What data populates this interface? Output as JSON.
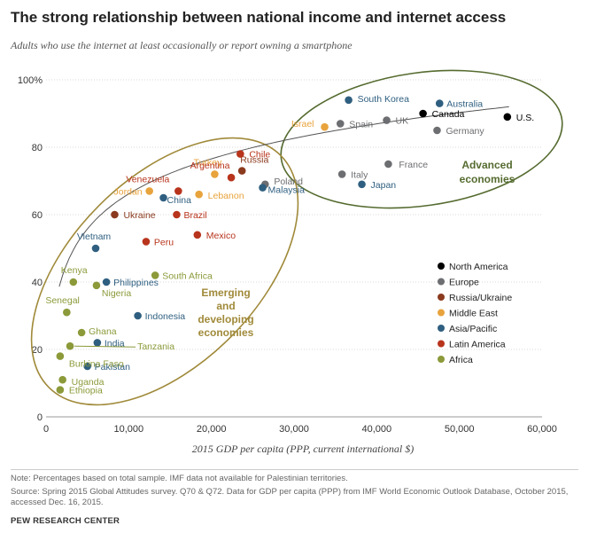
{
  "title": "The strong relationship between national income and internet access",
  "subtitle": "Adults who use the internet at least occasionally or report owning a smartphone",
  "note": "Note: Percentages based on total sample. IMF data not available for Palestinian territories.",
  "source": "Source: Spring 2015 Global Attitudes survey. Q70 & Q72. Data for GDP per capita (PPP) from IMF World Economic Outlook Database, October 2015, accessed Dec. 16, 2015.",
  "credit": "PEW RESEARCH CENTER",
  "colors": {
    "North America": "#000000",
    "Europe": "#6d6e71",
    "Russia/Ukraine": "#8b3a1e",
    "Middle East": "#e8a33c",
    "Asia/Pacific": "#2f5f80",
    "Latin America": "#b8341c",
    "Africa": "#8c9a3a",
    "ellipse": "#a08a3a",
    "ellipse_adv": "#556b2f",
    "trend": "#555555"
  },
  "chart_data": {
    "type": "scatter",
    "xlabel": "2015 GDP per capita (PPP, current international $)",
    "ylabel": "",
    "xlim": [
      0,
      60000
    ],
    "ylim": [
      0,
      100
    ],
    "xticks": [
      "0",
      "10,000",
      "20,000",
      "30,000",
      "40,000",
      "50,000",
      "60,000"
    ],
    "yticks": [
      "0",
      "20",
      "40",
      "60",
      "80",
      "100%"
    ],
    "grid": true,
    "legend": [
      "North America",
      "Europe",
      "Russia/Ukraine",
      "Middle East",
      "Asia/Pacific",
      "Latin America",
      "Africa"
    ],
    "legend_position": "right",
    "annotations": [
      {
        "text": [
          "Advanced",
          "economies"
        ]
      },
      {
        "text": [
          "Emerging",
          "and",
          "developing",
          "economies"
        ]
      }
    ],
    "points": [
      {
        "label": "U.S.",
        "x": 55800,
        "y": 89,
        "region": "North America"
      },
      {
        "label": "Canada",
        "x": 45600,
        "y": 90,
        "region": "North America"
      },
      {
        "label": "UK",
        "x": 41200,
        "y": 88,
        "region": "Europe"
      },
      {
        "label": "Germany",
        "x": 47300,
        "y": 85,
        "region": "Europe"
      },
      {
        "label": "Spain",
        "x": 35600,
        "y": 87,
        "region": "Europe"
      },
      {
        "label": "France",
        "x": 41400,
        "y": 75,
        "region": "Europe"
      },
      {
        "label": "Italy",
        "x": 35800,
        "y": 72,
        "region": "Europe"
      },
      {
        "label": "Poland",
        "x": 26500,
        "y": 69,
        "region": "Europe"
      },
      {
        "label": "Russia",
        "x": 23700,
        "y": 73,
        "region": "Russia/Ukraine"
      },
      {
        "label": "Ukraine",
        "x": 8300,
        "y": 60,
        "region": "Russia/Ukraine"
      },
      {
        "label": "Israel",
        "x": 33700,
        "y": 86,
        "region": "Middle East"
      },
      {
        "label": "Turkey",
        "x": 20400,
        "y": 72,
        "region": "Middle East"
      },
      {
        "label": "Lebanon",
        "x": 18500,
        "y": 66,
        "region": "Middle East"
      },
      {
        "label": "Jordan",
        "x": 12500,
        "y": 67,
        "region": "Middle East"
      },
      {
        "label": "South Korea",
        "x": 36600,
        "y": 94,
        "region": "Asia/Pacific"
      },
      {
        "label": "Australia",
        "x": 47600,
        "y": 93,
        "region": "Asia/Pacific"
      },
      {
        "label": "Japan",
        "x": 38200,
        "y": 69,
        "region": "Asia/Pacific"
      },
      {
        "label": "Malaysia",
        "x": 26200,
        "y": 68,
        "region": "Asia/Pacific"
      },
      {
        "label": "China",
        "x": 14200,
        "y": 65,
        "region": "Asia/Pacific"
      },
      {
        "label": "Vietnam",
        "x": 6000,
        "y": 50,
        "region": "Asia/Pacific"
      },
      {
        "label": "Philippines",
        "x": 7300,
        "y": 40,
        "region": "Asia/Pacific"
      },
      {
        "label": "Indonesia",
        "x": 11100,
        "y": 30,
        "region": "Asia/Pacific"
      },
      {
        "label": "India",
        "x": 6200,
        "y": 22,
        "region": "Asia/Pacific"
      },
      {
        "label": "Pakistan",
        "x": 5000,
        "y": 15,
        "region": "Asia/Pacific"
      },
      {
        "label": "Chile",
        "x": 23500,
        "y": 78,
        "region": "Latin America"
      },
      {
        "label": "Argentina",
        "x": 22400,
        "y": 71,
        "region": "Latin America"
      },
      {
        "label": "Venezuela",
        "x": 16000,
        "y": 67,
        "region": "Latin America"
      },
      {
        "label": "Brazil",
        "x": 15800,
        "y": 60,
        "region": "Latin America"
      },
      {
        "label": "Mexico",
        "x": 18300,
        "y": 54,
        "region": "Latin America"
      },
      {
        "label": "Peru",
        "x": 12100,
        "y": 52,
        "region": "Latin America"
      },
      {
        "label": "South Africa",
        "x": 13200,
        "y": 42,
        "region": "Africa"
      },
      {
        "label": "Nigeria",
        "x": 6100,
        "y": 39,
        "region": "Africa"
      },
      {
        "label": "Kenya",
        "x": 3300,
        "y": 40,
        "region": "Africa"
      },
      {
        "label": "Senegal",
        "x": 2500,
        "y": 31,
        "region": "Africa"
      },
      {
        "label": "Ghana",
        "x": 4300,
        "y": 25,
        "region": "Africa"
      },
      {
        "label": "Tanzania",
        "x": 2900,
        "y": 21,
        "region": "Africa"
      },
      {
        "label": "Burkina Faso",
        "x": 1700,
        "y": 18,
        "region": "Africa"
      },
      {
        "label": "Uganda",
        "x": 2000,
        "y": 11,
        "region": "Africa"
      },
      {
        "label": "Ethiopia",
        "x": 1700,
        "y": 8,
        "region": "Africa"
      }
    ]
  }
}
